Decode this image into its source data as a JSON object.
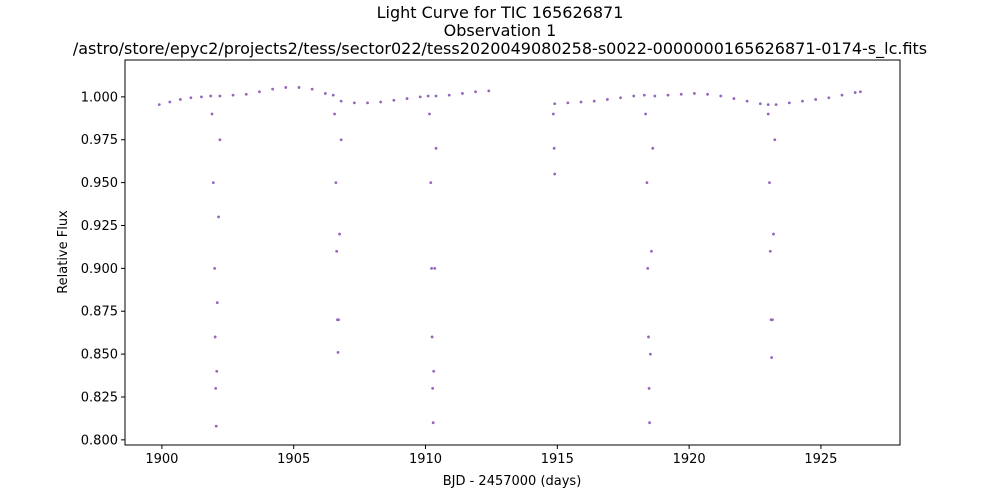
{
  "chart_data": {
    "type": "scatter",
    "title_lines": [
      "Light Curve for TIC 165626871",
      "Observation 1",
      "/astro/store/epyc2/projects2/tess/sector022/tess2020049080258-s0022-0000000165626871-0174-s_lc.fits"
    ],
    "xlabel": "BJD - 2457000 (days)",
    "ylabel": "Relative Flux",
    "xlim": [
      1898.6,
      1928.0
    ],
    "ylim": [
      0.797,
      1.0215
    ],
    "xticks": [
      1900,
      1905,
      1910,
      1915,
      1920,
      1925
    ],
    "xtick_labels": [
      "1900",
      "1905",
      "1910",
      "1915",
      "1920",
      "1925"
    ],
    "yticks": [
      0.8,
      0.825,
      0.85,
      0.875,
      0.9,
      0.925,
      0.95,
      0.975,
      1.0
    ],
    "ytick_labels": [
      "0.800",
      "0.825",
      "0.850",
      "0.875",
      "0.900",
      "0.925",
      "0.950",
      "0.975",
      "1.000"
    ],
    "grid": false,
    "marker_color": "#9467bd",
    "series": [
      {
        "points": [
          [
            1899.9,
            0.9955
          ],
          [
            1900.3,
            0.997
          ],
          [
            1900.7,
            0.9985
          ],
          [
            1901.1,
            0.9995
          ],
          [
            1901.5,
            1.0
          ],
          [
            1901.85,
            1.0005
          ],
          [
            1902.2,
            1.0005
          ],
          [
            1902.7,
            1.001
          ],
          [
            1903.2,
            1.0015
          ],
          [
            1903.7,
            1.003
          ],
          [
            1904.2,
            1.0045
          ],
          [
            1904.7,
            1.0055
          ],
          [
            1905.2,
            1.0055
          ],
          [
            1905.7,
            1.0045
          ],
          [
            1906.2,
            1.002
          ],
          [
            1906.5,
            1.001
          ],
          [
            1906.8,
            0.9975
          ],
          [
            1907.3,
            0.9965
          ],
          [
            1907.8,
            0.9965
          ],
          [
            1908.3,
            0.997
          ],
          [
            1908.8,
            0.998
          ],
          [
            1909.3,
            0.999
          ],
          [
            1909.8,
            1.0
          ],
          [
            1910.1,
            1.0005
          ],
          [
            1910.4,
            1.0005
          ],
          [
            1910.9,
            1.001
          ],
          [
            1911.4,
            1.002
          ],
          [
            1911.9,
            1.003
          ],
          [
            1912.4,
            1.0035
          ],
          [
            1914.9,
            0.996
          ],
          [
            1915.4,
            0.9965
          ],
          [
            1915.9,
            0.997
          ],
          [
            1916.4,
            0.9975
          ],
          [
            1916.9,
            0.9985
          ],
          [
            1917.4,
            0.9995
          ],
          [
            1917.9,
            1.0005
          ],
          [
            1918.3,
            1.001
          ],
          [
            1918.7,
            1.0005
          ],
          [
            1919.2,
            1.001
          ],
          [
            1919.7,
            1.0015
          ],
          [
            1920.2,
            1.002
          ],
          [
            1920.7,
            1.0015
          ],
          [
            1921.2,
            1.0005
          ],
          [
            1921.7,
            0.999
          ],
          [
            1922.2,
            0.9975
          ],
          [
            1922.7,
            0.996
          ],
          [
            1923.0,
            0.9955
          ],
          [
            1923.3,
            0.9955
          ],
          [
            1923.8,
            0.9965
          ],
          [
            1924.3,
            0.9975
          ],
          [
            1924.8,
            0.9985
          ],
          [
            1925.3,
            0.9995
          ],
          [
            1925.8,
            1.001
          ],
          [
            1926.3,
            1.0025
          ],
          [
            1926.5,
            1.003
          ],
          [
            1901.9,
            0.99
          ],
          [
            1901.95,
            0.95
          ],
          [
            1902.0,
            0.9
          ],
          [
            1902.02,
            0.86
          ],
          [
            1902.04,
            0.83
          ],
          [
            1902.06,
            0.808
          ],
          [
            1902.08,
            0.84
          ],
          [
            1902.1,
            0.88
          ],
          [
            1902.15,
            0.93
          ],
          [
            1902.2,
            0.975
          ],
          [
            1906.55,
            0.99
          ],
          [
            1906.6,
            0.95
          ],
          [
            1906.63,
            0.91
          ],
          [
            1906.66,
            0.87
          ],
          [
            1906.68,
            0.851
          ],
          [
            1906.7,
            0.87
          ],
          [
            1906.74,
            0.92
          ],
          [
            1906.8,
            0.975
          ],
          [
            1910.15,
            0.99
          ],
          [
            1910.2,
            0.95
          ],
          [
            1910.23,
            0.9
          ],
          [
            1910.25,
            0.86
          ],
          [
            1910.27,
            0.83
          ],
          [
            1910.29,
            0.81
          ],
          [
            1910.31,
            0.84
          ],
          [
            1910.35,
            0.9
          ],
          [
            1910.4,
            0.97
          ],
          [
            1914.85,
            0.99
          ],
          [
            1914.88,
            0.97
          ],
          [
            1914.9,
            0.955
          ],
          [
            1918.35,
            0.99
          ],
          [
            1918.4,
            0.95
          ],
          [
            1918.43,
            0.9
          ],
          [
            1918.46,
            0.86
          ],
          [
            1918.48,
            0.83
          ],
          [
            1918.5,
            0.81
          ],
          [
            1918.53,
            0.85
          ],
          [
            1918.57,
            0.91
          ],
          [
            1918.62,
            0.97
          ],
          [
            1923.0,
            0.99
          ],
          [
            1923.05,
            0.95
          ],
          [
            1923.08,
            0.91
          ],
          [
            1923.11,
            0.87
          ],
          [
            1923.13,
            0.848
          ],
          [
            1923.16,
            0.87
          ],
          [
            1923.2,
            0.92
          ],
          [
            1923.25,
            0.975
          ]
        ]
      }
    ]
  }
}
